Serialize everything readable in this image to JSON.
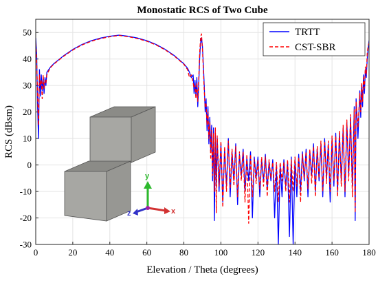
{
  "chart_data": {
    "type": "line",
    "title": "Monostatic RCS of Two Cube",
    "xlabel": "Elevation / Theta (degrees)",
    "ylabel": "RCS (dBsm)",
    "xlim": [
      0,
      180
    ],
    "ylim": [
      -30,
      55
    ],
    "xticks": [
      0,
      20,
      40,
      60,
      80,
      100,
      120,
      140,
      160,
      180
    ],
    "yticks": [
      -30,
      -20,
      -10,
      0,
      10,
      20,
      30,
      40,
      50
    ],
    "grid": true,
    "legend_position": "top-right",
    "series": [
      {
        "name": "TRTT",
        "color": "#0000ff",
        "style": "solid",
        "points": [
          [
            0,
            48
          ],
          [
            0.5,
            42
          ],
          [
            1,
            22
          ],
          [
            1.5,
            10
          ],
          [
            2,
            36
          ],
          [
            2.5,
            26
          ],
          [
            3,
            34
          ],
          [
            3.5,
            28
          ],
          [
            4,
            33
          ],
          [
            4.5,
            27
          ],
          [
            5,
            33
          ],
          [
            5.5,
            30
          ],
          [
            6,
            35
          ],
          [
            7,
            36
          ],
          [
            8,
            37
          ],
          [
            10,
            38.4
          ],
          [
            15,
            41.2
          ],
          [
            20,
            43.6
          ],
          [
            25,
            45.5
          ],
          [
            30,
            46.9
          ],
          [
            35,
            47.9
          ],
          [
            40,
            48.6
          ],
          [
            45,
            49
          ],
          [
            50,
            48.6
          ],
          [
            55,
            47.9
          ],
          [
            60,
            46.9
          ],
          [
            65,
            45.5
          ],
          [
            70,
            43.6
          ],
          [
            75,
            41.2
          ],
          [
            80,
            38.2
          ],
          [
            82,
            36.5
          ],
          [
            83,
            35
          ],
          [
            84,
            33
          ],
          [
            85,
            34
          ],
          [
            85.5,
            27
          ],
          [
            86,
            32
          ],
          [
            86.5,
            26
          ],
          [
            87,
            33
          ],
          [
            87.5,
            22
          ],
          [
            88,
            30
          ],
          [
            88.5,
            40
          ],
          [
            89,
            46
          ],
          [
            89.5,
            48
          ],
          [
            90,
            45
          ],
          [
            90.5,
            38
          ],
          [
            91,
            30
          ],
          [
            91.5,
            20
          ],
          [
            92,
            25
          ],
          [
            92.5,
            13
          ],
          [
            93,
            22
          ],
          [
            93.5,
            8
          ],
          [
            94,
            18
          ],
          [
            94.5,
            5
          ],
          [
            95,
            15
          ],
          [
            95.5,
            -6
          ],
          [
            96,
            14
          ],
          [
            96.5,
            -21
          ],
          [
            97,
            12
          ],
          [
            97.5,
            -8
          ],
          [
            98,
            10
          ],
          [
            99,
            -10
          ],
          [
            100,
            8
          ],
          [
            101,
            -14
          ],
          [
            102,
            6
          ],
          [
            103,
            -8
          ],
          [
            104,
            10
          ],
          [
            105,
            -12
          ],
          [
            106,
            5
          ],
          [
            107,
            -6
          ],
          [
            108,
            8
          ],
          [
            109,
            -15
          ],
          [
            110,
            4
          ],
          [
            111,
            -4
          ],
          [
            112,
            6
          ],
          [
            113,
            -10
          ],
          [
            114,
            3
          ],
          [
            115,
            -6
          ],
          [
            116,
            5
          ],
          [
            117,
            -20
          ],
          [
            118,
            3
          ],
          [
            119,
            -5
          ],
          [
            120,
            3
          ],
          [
            121,
            -12
          ],
          [
            122,
            2
          ],
          [
            123,
            -6
          ],
          [
            124,
            4
          ],
          [
            125,
            -9
          ],
          [
            126,
            1
          ],
          [
            127,
            -6
          ],
          [
            128,
            2
          ],
          [
            129,
            -20
          ],
          [
            130,
            0
          ],
          [
            131,
            -30
          ],
          [
            132,
            0
          ],
          [
            133,
            -12
          ],
          [
            134,
            2
          ],
          [
            135,
            -8
          ],
          [
            136,
            1
          ],
          [
            137,
            -27
          ],
          [
            138,
            3
          ],
          [
            139,
            -30
          ],
          [
            140,
            2
          ],
          [
            141,
            -12
          ],
          [
            142,
            4
          ],
          [
            143,
            -10
          ],
          [
            144,
            5
          ],
          [
            145,
            -6
          ],
          [
            146,
            6
          ],
          [
            147,
            -12
          ],
          [
            148,
            5
          ],
          [
            149,
            -4
          ],
          [
            150,
            8
          ],
          [
            151,
            -10
          ],
          [
            152,
            6
          ],
          [
            153,
            -6
          ],
          [
            154,
            8
          ],
          [
            155,
            -12
          ],
          [
            156,
            10
          ],
          [
            157,
            -5
          ],
          [
            158,
            8
          ],
          [
            159,
            -14
          ],
          [
            160,
            10
          ],
          [
            161,
            -8
          ],
          [
            162,
            12
          ],
          [
            163,
            -10
          ],
          [
            164,
            12
          ],
          [
            165,
            -6
          ],
          [
            166,
            14
          ],
          [
            167,
            -12
          ],
          [
            168,
            16
          ],
          [
            169,
            -4
          ],
          [
            170,
            18
          ],
          [
            171,
            -8
          ],
          [
            172,
            22
          ],
          [
            172.5,
            -21
          ],
          [
            173,
            25
          ],
          [
            174,
            10
          ],
          [
            175,
            28
          ],
          [
            175.5,
            18
          ],
          [
            176,
            30
          ],
          [
            176.5,
            22
          ],
          [
            177,
            34
          ],
          [
            177.5,
            27
          ],
          [
            178,
            36
          ],
          [
            178.5,
            33
          ],
          [
            179,
            40
          ],
          [
            179.5,
            44
          ],
          [
            180,
            47
          ]
        ]
      },
      {
        "name": "CST-SBR",
        "color": "#ff0000",
        "style": "dashed",
        "points": [
          [
            0,
            46
          ],
          [
            0.5,
            40
          ],
          [
            1,
            26
          ],
          [
            1.5,
            15
          ],
          [
            2,
            34
          ],
          [
            2.5,
            30
          ],
          [
            3,
            32
          ],
          [
            3.5,
            25
          ],
          [
            4,
            34
          ],
          [
            4.5,
            29
          ],
          [
            5,
            32
          ],
          [
            5.5,
            31
          ],
          [
            6,
            34
          ],
          [
            7,
            35.5
          ],
          [
            8,
            36.8
          ],
          [
            10,
            38.2
          ],
          [
            15,
            41
          ],
          [
            20,
            43.4
          ],
          [
            25,
            45.3
          ],
          [
            30,
            46.7
          ],
          [
            35,
            47.7
          ],
          [
            40,
            48.4
          ],
          [
            45,
            48.9
          ],
          [
            50,
            48.4
          ],
          [
            55,
            47.7
          ],
          [
            60,
            46.7
          ],
          [
            65,
            45.3
          ],
          [
            70,
            43.4
          ],
          [
            75,
            41
          ],
          [
            80,
            38
          ],
          [
            82,
            36
          ],
          [
            83,
            33
          ],
          [
            84,
            34
          ],
          [
            85,
            31
          ],
          [
            85.5,
            29
          ],
          [
            86,
            30
          ],
          [
            86.5,
            25
          ],
          [
            87,
            31
          ],
          [
            87.5,
            24
          ],
          [
            88,
            32
          ],
          [
            88.5,
            42
          ],
          [
            89,
            48
          ],
          [
            89.5,
            49.5
          ],
          [
            90,
            44
          ],
          [
            90.5,
            36
          ],
          [
            91,
            28
          ],
          [
            91.5,
            22
          ],
          [
            92,
            23
          ],
          [
            92.5,
            15
          ],
          [
            93,
            20
          ],
          [
            93.5,
            10
          ],
          [
            94,
            16
          ],
          [
            94.5,
            2
          ],
          [
            95,
            13
          ],
          [
            95.5,
            -4
          ],
          [
            96,
            12
          ],
          [
            96.5,
            -10
          ],
          [
            97,
            14
          ],
          [
            97.5,
            -18
          ],
          [
            98,
            11
          ],
          [
            99,
            -8
          ],
          [
            100,
            9
          ],
          [
            101,
            -16
          ],
          [
            102,
            7
          ],
          [
            103,
            -10
          ],
          [
            104,
            9
          ],
          [
            105,
            -9
          ],
          [
            106,
            6
          ],
          [
            107,
            -8
          ],
          [
            108,
            7
          ],
          [
            109,
            -12
          ],
          [
            110,
            5
          ],
          [
            111,
            -6
          ],
          [
            112,
            5
          ],
          [
            113,
            -14
          ],
          [
            114,
            4
          ],
          [
            115,
            -22
          ],
          [
            116,
            4
          ],
          [
            117,
            -12
          ],
          [
            118,
            2
          ],
          [
            119,
            -7
          ],
          [
            120,
            2
          ],
          [
            121,
            -9
          ],
          [
            122,
            3
          ],
          [
            123,
            -8
          ],
          [
            124,
            3
          ],
          [
            125,
            -12
          ],
          [
            126,
            2
          ],
          [
            127,
            -5
          ],
          [
            128,
            1
          ],
          [
            129,
            -10
          ],
          [
            130,
            1
          ],
          [
            131,
            -14
          ],
          [
            132,
            1
          ],
          [
            133,
            -6
          ],
          [
            134,
            1
          ],
          [
            135,
            -10
          ],
          [
            136,
            2
          ],
          [
            137,
            -14
          ],
          [
            138,
            2
          ],
          [
            139,
            -10
          ],
          [
            140,
            3
          ],
          [
            141,
            -8
          ],
          [
            142,
            3
          ],
          [
            143,
            -14
          ],
          [
            144,
            4
          ],
          [
            145,
            -5
          ],
          [
            146,
            5
          ],
          [
            147,
            -9
          ],
          [
            148,
            6
          ],
          [
            149,
            -7
          ],
          [
            150,
            7
          ],
          [
            151,
            -12
          ],
          [
            152,
            7
          ],
          [
            153,
            -5
          ],
          [
            154,
            9
          ],
          [
            155,
            -10
          ],
          [
            156,
            9
          ],
          [
            157,
            -7
          ],
          [
            158,
            9
          ],
          [
            159,
            -10
          ],
          [
            160,
            11
          ],
          [
            161,
            -6
          ],
          [
            162,
            11
          ],
          [
            163,
            -12
          ],
          [
            164,
            13
          ],
          [
            165,
            -8
          ],
          [
            166,
            15
          ],
          [
            167,
            -10
          ],
          [
            168,
            17
          ],
          [
            169,
            -6
          ],
          [
            170,
            19
          ],
          [
            171,
            -12
          ],
          [
            172,
            21
          ],
          [
            172.5,
            -18
          ],
          [
            173,
            24
          ],
          [
            174,
            14
          ],
          [
            175,
            27
          ],
          [
            175.5,
            20
          ],
          [
            176,
            31
          ],
          [
            176.5,
            24
          ],
          [
            177,
            33
          ],
          [
            177.5,
            29
          ],
          [
            178,
            37
          ],
          [
            178.5,
            34
          ],
          [
            179,
            42
          ],
          [
            179.5,
            45
          ],
          [
            180,
            46
          ]
        ]
      }
    ]
  },
  "inset": {
    "axis_labels": {
      "y": "y",
      "z": "z",
      "x": "x"
    },
    "colors": {
      "cube_front": "#a7a7a3",
      "cube_top": "#8b8b87",
      "cube_side": "#979793"
    }
  }
}
